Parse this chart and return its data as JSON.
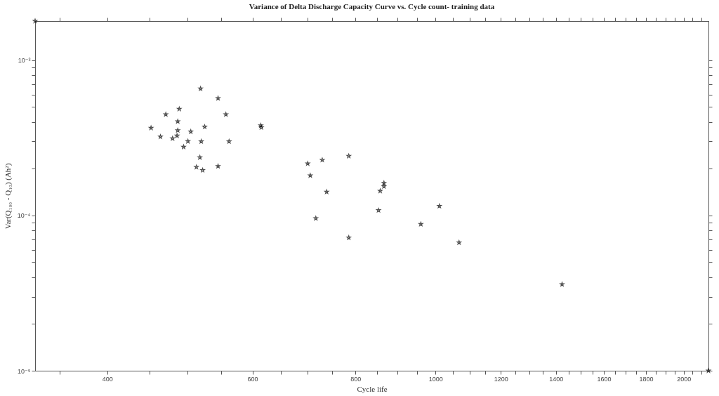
{
  "chart_data": {
    "type": "scatter",
    "title": "Variance of Delta Discharge Capacity Curve vs. Cycle count- training data",
    "xlabel": "Cycle life",
    "ylabel": "Var(Q₁₀₀ - Q₁₀) (Ah²)",
    "log": "xy",
    "grid": false,
    "marker": "star",
    "xlim": [
      327,
      2143
    ],
    "ylim": [
      1e-05,
      0.00179
    ],
    "xticks": [
      {
        "value": 350,
        "label": null
      },
      400,
      {
        "value": 450,
        "label": null
      },
      {
        "value": 500,
        "label": null
      },
      {
        "value": 550,
        "label": null
      },
      600,
      {
        "value": 650,
        "label": null
      },
      {
        "value": 700,
        "label": null
      },
      {
        "value": 750,
        "label": null
      },
      800,
      {
        "value": 850,
        "label": null
      },
      {
        "value": 900,
        "label": null
      },
      {
        "value": 950,
        "label": null
      },
      1000,
      {
        "value": 1050,
        "label": null
      },
      {
        "value": 1100,
        "label": null
      },
      {
        "value": 1150,
        "label": null
      },
      1200,
      {
        "value": 1250,
        "label": null
      },
      {
        "value": 1300,
        "label": null
      },
      {
        "value": 1350,
        "label": null
      },
      1400,
      {
        "value": 1450,
        "label": null
      },
      {
        "value": 1500,
        "label": null
      },
      {
        "value": 1550,
        "label": null
      },
      1600,
      {
        "value": 1650,
        "label": null
      },
      {
        "value": 1700,
        "label": null
      },
      {
        "value": 1750,
        "label": null
      },
      1800,
      {
        "value": 1850,
        "label": null
      },
      {
        "value": 1900,
        "label": null
      },
      {
        "value": 1950,
        "label": null
      },
      2000,
      {
        "value": 2050,
        "label": null
      },
      {
        "value": 2100,
        "label": null
      }
    ],
    "yticks": [
      {
        "value": 1e-05,
        "label": "10⁻⁵"
      },
      {
        "value": 2e-05,
        "label": null
      },
      {
        "value": 3e-05,
        "label": null
      },
      {
        "value": 4e-05,
        "label": null
      },
      {
        "value": 5e-05,
        "label": null
      },
      {
        "value": 6e-05,
        "label": null
      },
      {
        "value": 7e-05,
        "label": null
      },
      {
        "value": 8e-05,
        "label": null
      },
      {
        "value": 9e-05,
        "label": null
      },
      {
        "value": 0.0001,
        "label": "10⁻⁴"
      },
      {
        "value": 0.0002,
        "label": null
      },
      {
        "value": 0.0003,
        "label": null
      },
      {
        "value": 0.0004,
        "label": null
      },
      {
        "value": 0.0005,
        "label": null
      },
      {
        "value": 0.0006,
        "label": null
      },
      {
        "value": 0.0007,
        "label": null
      },
      {
        "value": 0.0008,
        "label": null
      },
      {
        "value": 0.0009,
        "label": null
      },
      {
        "value": 0.001,
        "label": "10⁻³"
      }
    ],
    "series": [
      {
        "color": "#000000",
        "x": [
          327,
          452,
          464,
          471,
          480,
          486,
          487,
          487,
          489,
          495,
          501,
          505,
          513,
          518,
          519,
          520,
          522,
          525,
          545,
          545,
          557,
          562,
          614,
          615,
          700,
          705,
          716,
          729,
          738,
          785,
          785,
          866,
          866,
          857,
          853,
          1011,
          960,
          1068,
          1424,
          2143
        ],
        "values": [
          0.00179,
          0.000367,
          0.000322,
          0.000448,
          0.000314,
          0.000327,
          0.000404,
          0.000354,
          0.000486,
          0.000277,
          0.000301,
          0.000347,
          0.000205,
          0.000237,
          0.000657,
          0.0003,
          0.000196,
          0.000373,
          0.00057,
          0.000208,
          0.000448,
          0.0003,
          0.00038,
          0.00037,
          0.000216,
          0.000181,
          9.6e-05,
          0.000228,
          0.000142,
          0.000242,
          7.2e-05,
          0.000162,
          0.000154,
          0.000144,
          0.000108,
          0.000115,
          8.8e-05,
          6.7e-05,
          3.6e-05,
          1e-05
        ]
      }
    ]
  }
}
